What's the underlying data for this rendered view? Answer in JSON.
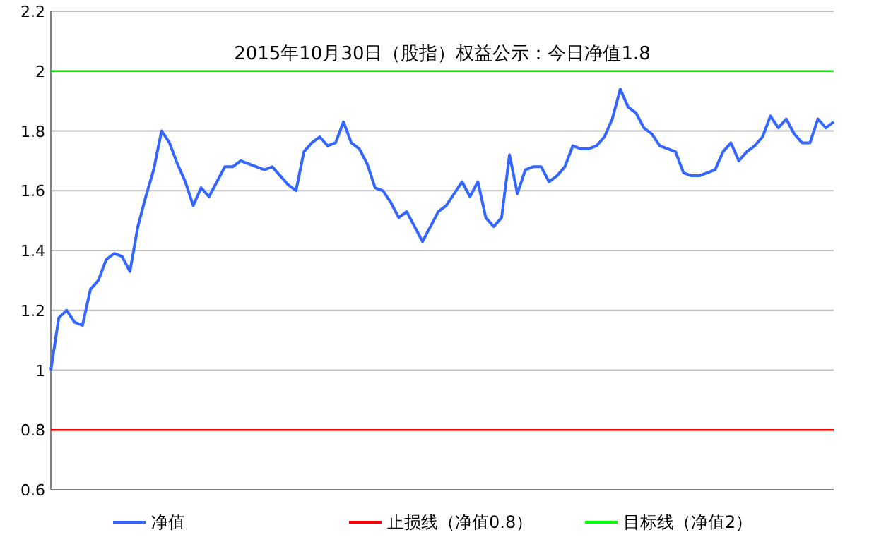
{
  "chart_data": {
    "type": "line",
    "title": "2015年10月30日（股指）权益公示：今日净值1.8",
    "categories": [
      null,
      null,
      null,
      null,
      null,
      null,
      null,
      null,
      null,
      null,
      null,
      null,
      null,
      null,
      null,
      null,
      null,
      null,
      null,
      null,
      null,
      null,
      null,
      null,
      null,
      null,
      null,
      null,
      null,
      null,
      null,
      null,
      null,
      null,
      null,
      null,
      null,
      null,
      null,
      null,
      null,
      null,
      null,
      null,
      null,
      null,
      null,
      null,
      null,
      null,
      null,
      null,
      null,
      null,
      null,
      null,
      null,
      null,
      null,
      null,
      null,
      null,
      null,
      null,
      null,
      null,
      null,
      null,
      null,
      null,
      null,
      null,
      null,
      null,
      null,
      null,
      null,
      null,
      null,
      null,
      null,
      null,
      null,
      null,
      null,
      null,
      null,
      null,
      null,
      null,
      null,
      null,
      null,
      null,
      null,
      null,
      null,
      null,
      null,
      null
    ],
    "series": [
      {
        "name": "净值",
        "color": "#3366ff",
        "values": [
          1.0,
          1.175,
          1.2,
          1.16,
          1.15,
          1.27,
          1.3,
          1.37,
          1.39,
          1.38,
          1.33,
          1.48,
          1.58,
          1.67,
          1.8,
          1.76,
          1.69,
          1.63,
          1.55,
          1.61,
          1.58,
          1.63,
          1.68,
          1.68,
          1.7,
          1.69,
          1.68,
          1.67,
          1.68,
          1.65,
          1.62,
          1.6,
          1.73,
          1.76,
          1.78,
          1.75,
          1.76,
          1.83,
          1.76,
          1.74,
          1.69,
          1.61,
          1.6,
          1.56,
          1.51,
          1.53,
          1.48,
          1.43,
          1.48,
          1.53,
          1.55,
          1.59,
          1.63,
          1.58,
          1.63,
          1.51,
          1.48,
          1.51,
          1.72,
          1.59,
          1.67,
          1.68,
          1.68,
          1.63,
          1.65,
          1.68,
          1.75,
          1.74,
          1.74,
          1.75,
          1.78,
          1.84,
          1.94,
          1.88,
          1.86,
          1.81,
          1.79,
          1.75,
          1.74,
          1.73,
          1.66,
          1.65,
          1.65,
          1.66,
          1.67,
          1.73,
          1.76,
          1.7,
          1.73,
          1.75,
          1.78,
          1.85,
          1.81,
          1.84,
          1.79,
          1.76,
          1.76,
          1.84,
          1.81,
          1.83
        ]
      }
    ],
    "ylim": [
      0.6,
      2.2
    ],
    "yticks": [
      0.6,
      0.8,
      1,
      1.2,
      1.4,
      1.6,
      1.8,
      2,
      2.2
    ],
    "ref_lines": [
      {
        "axis": "y",
        "value": 0.8,
        "label": "止损线（净值0.8）",
        "color": "#ff0000"
      },
      {
        "axis": "y",
        "value": 2,
        "label": "目标线（净值2）",
        "color": "#00ff00"
      }
    ],
    "grid": "y",
    "legend": "bottom",
    "marker": "none"
  }
}
